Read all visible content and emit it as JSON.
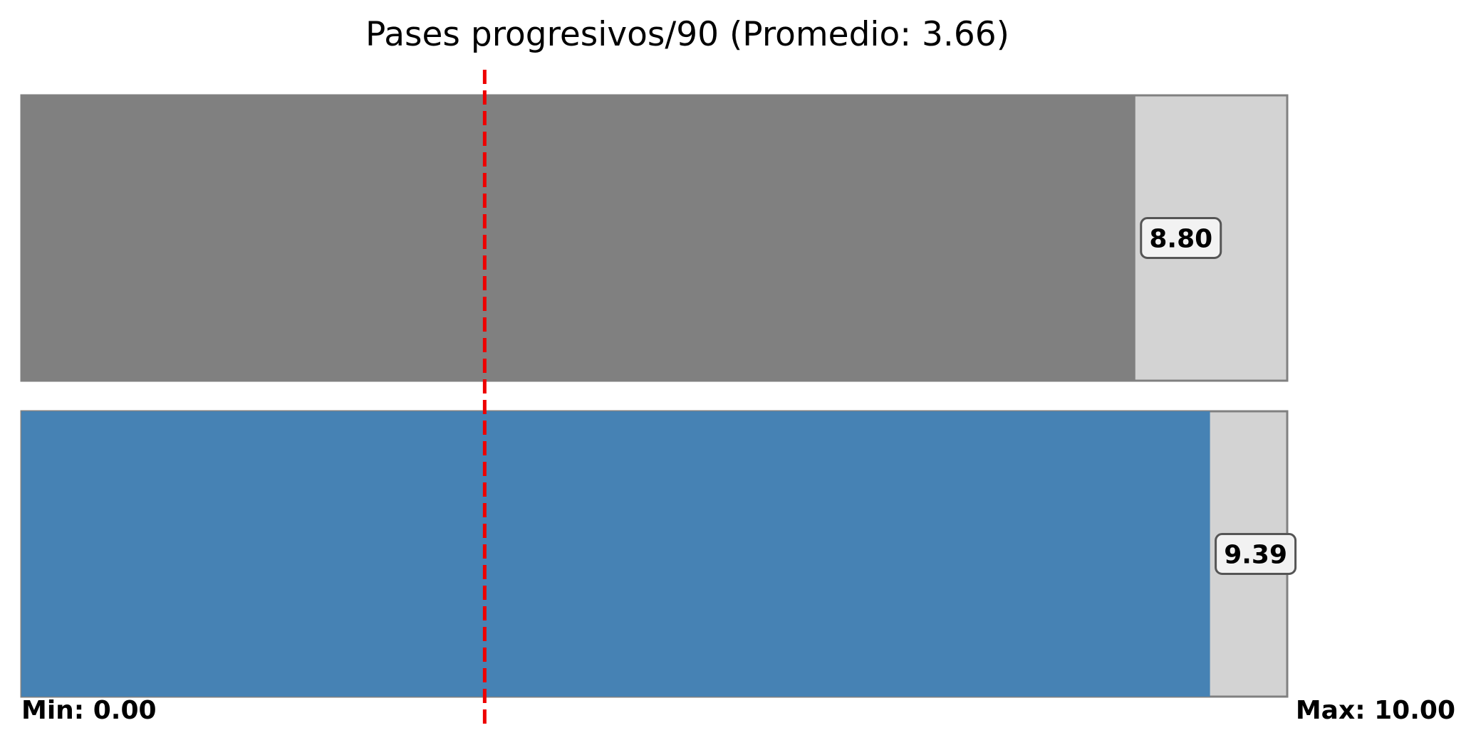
{
  "chart_data": {
    "type": "bar",
    "orientation": "horizontal",
    "title": "Pases progresivos/90 (Promedio: 3.66)",
    "xlim": [
      0,
      10
    ],
    "average": 3.66,
    "min_label": "Min: 0.00",
    "max_label": "Max: 10.00",
    "bars": [
      {
        "value": 8.8,
        "label": "8.80",
        "color": "#808080"
      },
      {
        "value": 9.39,
        "label": "9.39",
        "color": "#4682b4"
      }
    ],
    "track_color": "#d3d3d3",
    "track_border_color": "#808080",
    "average_line_color": "#ee0000",
    "average_line_style": "dashed",
    "grid": false,
    "legend": "none"
  }
}
